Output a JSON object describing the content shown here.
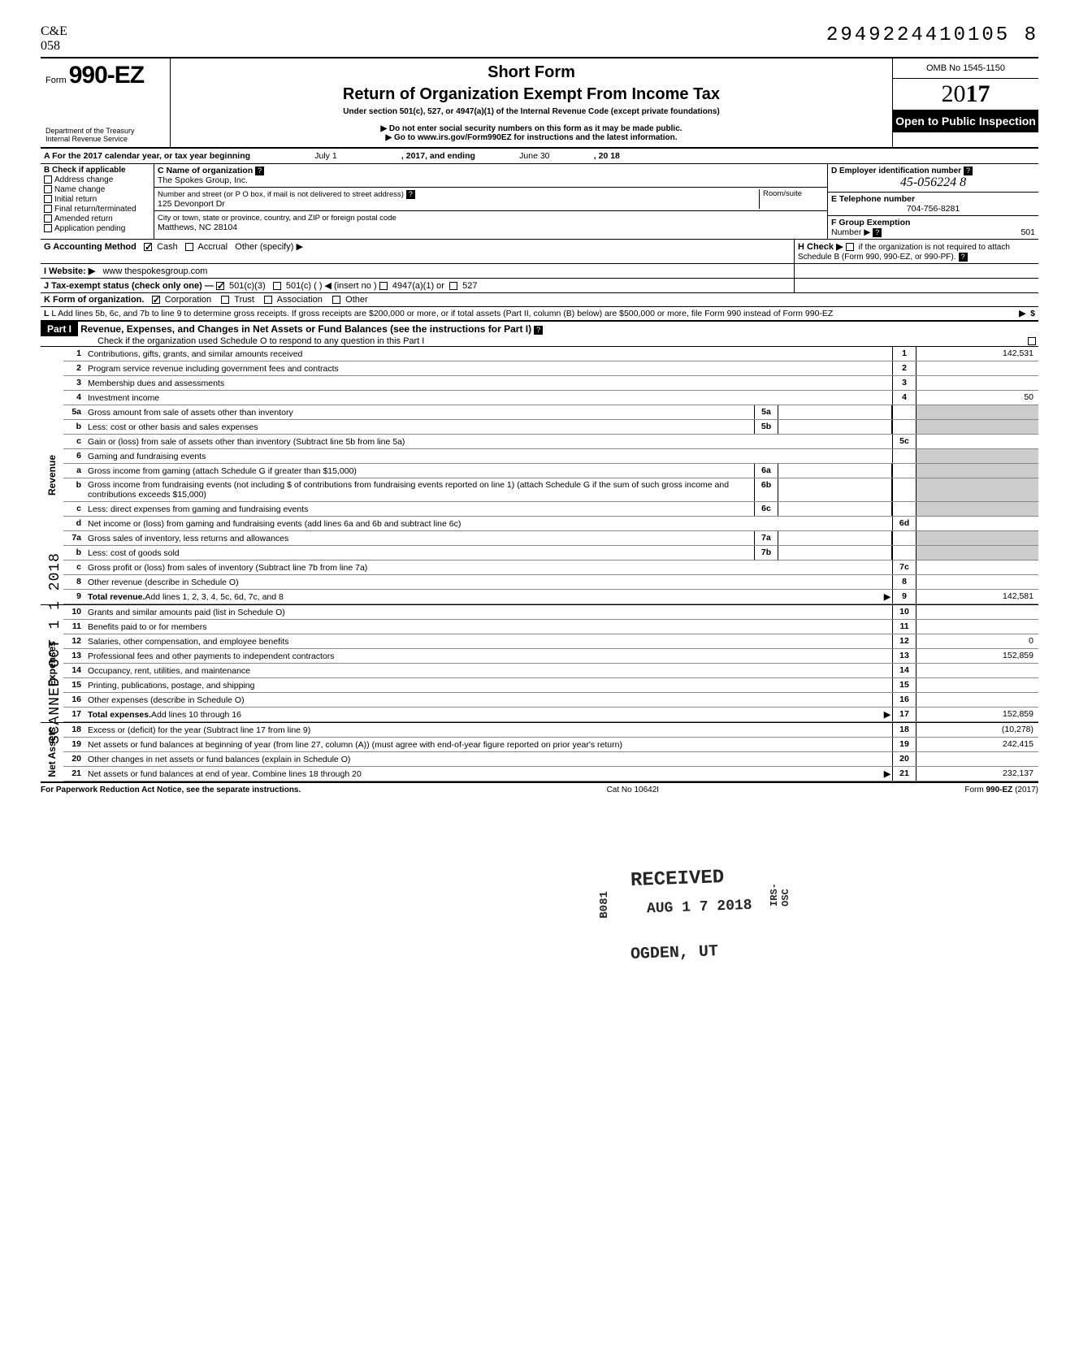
{
  "corner_mark": "C&E\n058",
  "doc_number": "2949224410105  8",
  "header": {
    "form_label": "Form",
    "form_number": "990-EZ",
    "short_form": "Short Form",
    "title": "Return of Organization Exempt From Income Tax",
    "subtitle": "Under section 501(c), 527, or 4947(a)(1) of the Internal Revenue Code (except private foundations)",
    "warn1": "▶ Do not enter social security numbers on this form as it may be made public.",
    "warn2": "▶ Go to www.irs.gov/Form990EZ for instructions and the latest information.",
    "dept1": "Department of the Treasury",
    "dept2": "Internal Revenue Service",
    "omb": "OMB No 1545-1150",
    "year_prefix": "20",
    "year_bold": "17",
    "open": "Open to Public Inspection"
  },
  "line_a": {
    "label": "A For the 2017 calendar year, or tax year beginning",
    "begin": "July 1",
    "mid": ", 2017, and ending",
    "end_month": "June 30",
    "end_year": ", 20   18"
  },
  "col_b": {
    "header": "B Check if applicable",
    "items": [
      "Address change",
      "Name change",
      "Initial return",
      "Final return/terminated",
      "Amended return",
      "Application pending"
    ]
  },
  "col_c": {
    "name_label": "C Name of organization",
    "name": "The Spokes Group, Inc.",
    "addr_label": "Number and street (or P O  box, if mail is not delivered to street address)",
    "room_label": "Room/suite",
    "addr": "125 Devonport Dr",
    "city_label": "City or town, state or province, country, and ZIP or foreign postal code",
    "city": "Matthews, NC  28104"
  },
  "col_d": {
    "ein_label": "D Employer identification number",
    "ein": "45-056224 8",
    "phone_label": "E  Telephone number",
    "phone": "704-756-8281",
    "group_label": "F Group Exemption",
    "group_num_label": "Number  ▶",
    "group_num": "501"
  },
  "line_g": {
    "label": "G  Accounting Method",
    "cash": "Cash",
    "accrual": "Accrual",
    "other": "Other (specify) ▶"
  },
  "line_h": {
    "label": "H Check ▶",
    "text": "if the organization is not required to attach Schedule B (Form 990, 990-EZ, or 990-PF)."
  },
  "line_i": {
    "label": "I  Website: ▶",
    "value": "www thespokesgroup.com"
  },
  "line_j": {
    "label": "J Tax-exempt status (check only one) —",
    "opt1": "501(c)(3)",
    "opt2": "501(c) (",
    "insert": ") ◀ (insert no )",
    "opt3": "4947(a)(1) or",
    "opt4": "527"
  },
  "line_k": {
    "label": "K Form of organization.",
    "corp": "Corporation",
    "trust": "Trust",
    "assoc": "Association",
    "other": "Other"
  },
  "line_l": "L Add lines 5b, 6c, and 7b to line 9 to determine gross receipts. If gross receipts are $200,000 or more, or if total assets (Part II, column (B) below) are $500,000 or more, file Form 990 instead of Form 990-EZ",
  "part1": {
    "label": "Part I",
    "title": "Revenue, Expenses, and Changes in Net Assets or Fund Balances (see the instructions for Part I)",
    "check": "Check if the organization used Schedule O to respond to any question in this Part I"
  },
  "revenue_lines": [
    {
      "n": "1",
      "d": "Contributions, gifts, grants, and similar amounts received",
      "box": "1",
      "v": "142,531"
    },
    {
      "n": "2",
      "d": "Program service revenue including government fees and contracts",
      "box": "2",
      "v": ""
    },
    {
      "n": "3",
      "d": "Membership dues and assessments",
      "box": "3",
      "v": ""
    },
    {
      "n": "4",
      "d": "Investment income",
      "box": "4",
      "v": "50"
    },
    {
      "n": "5a",
      "d": "Gross amount from sale of assets other than inventory",
      "mini": "5a"
    },
    {
      "n": "b",
      "d": "Less: cost or other basis and sales expenses",
      "mini": "5b"
    },
    {
      "n": "c",
      "d": "Gain or (loss) from sale of assets other than inventory (Subtract line 5b from line 5a)",
      "box": "5c",
      "v": ""
    },
    {
      "n": "6",
      "d": "Gaming and fundraising events"
    },
    {
      "n": "a",
      "d": "Gross income from gaming (attach Schedule G if greater than $15,000)",
      "mini": "6a"
    },
    {
      "n": "b",
      "d": "Gross income from fundraising events (not including  $                      of contributions from fundraising events reported on line 1) (attach Schedule G if the sum of such gross income and contributions exceeds $15,000)",
      "mini": "6b"
    },
    {
      "n": "c",
      "d": "Less: direct expenses from gaming and fundraising events",
      "mini": "6c"
    },
    {
      "n": "d",
      "d": "Net income or (loss) from gaming and fundraising events (add lines 6a and 6b and subtract line 6c)",
      "box": "6d",
      "v": ""
    },
    {
      "n": "7a",
      "d": "Gross sales of inventory, less returns and allowances",
      "mini": "7a"
    },
    {
      "n": "b",
      "d": "Less: cost of goods sold",
      "mini": "7b"
    },
    {
      "n": "c",
      "d": "Gross profit or (loss) from sales of inventory (Subtract line 7b from line 7a)",
      "box": "7c",
      "v": ""
    },
    {
      "n": "8",
      "d": "Other revenue (describe in Schedule O)",
      "box": "8",
      "v": ""
    },
    {
      "n": "9",
      "d": "Total revenue. Add lines 1, 2, 3, 4, 5c, 6d, 7c, and 8",
      "box": "9",
      "v": "142,581",
      "bold": true,
      "arrow": true
    }
  ],
  "expense_lines": [
    {
      "n": "10",
      "d": "Grants and similar amounts paid (list in Schedule O)",
      "box": "10",
      "v": ""
    },
    {
      "n": "11",
      "d": "Benefits paid to or for members",
      "box": "11",
      "v": ""
    },
    {
      "n": "12",
      "d": "Salaries, other compensation, and employee benefits",
      "box": "12",
      "v": "0"
    },
    {
      "n": "13",
      "d": "Professional fees and other payments to independent contractors",
      "box": "13",
      "v": "152,859"
    },
    {
      "n": "14",
      "d": "Occupancy, rent, utilities, and maintenance",
      "box": "14",
      "v": ""
    },
    {
      "n": "15",
      "d": "Printing, publications, postage, and shipping",
      "box": "15",
      "v": ""
    },
    {
      "n": "16",
      "d": "Other expenses (describe in Schedule O)",
      "box": "16",
      "v": ""
    },
    {
      "n": "17",
      "d": "Total expenses. Add lines 10 through 16",
      "box": "17",
      "v": "152,859",
      "bold": true,
      "arrow": true
    }
  ],
  "netassets_lines": [
    {
      "n": "18",
      "d": "Excess or (deficit) for the year (Subtract line 17 from line 9)",
      "box": "18",
      "v": "(10,278)"
    },
    {
      "n": "19",
      "d": "Net assets or fund balances at beginning of year (from line 27, column (A)) (must agree with end-of-year figure reported on prior year's return)",
      "box": "19",
      "v": "242,415"
    },
    {
      "n": "20",
      "d": "Other changes in net assets or fund balances (explain in Schedule O)",
      "box": "20",
      "v": ""
    },
    {
      "n": "21",
      "d": "Net assets or fund balances at end of year. Combine lines 18 through 20",
      "box": "21",
      "v": "232,137",
      "arrow": true
    }
  ],
  "side_labels": {
    "revenue": "Revenue",
    "expenses": "Expenses",
    "net": "Net Assets"
  },
  "footer": {
    "left": "For Paperwork Reduction Act Notice, see the separate instructions.",
    "mid": "Cat No 10642I",
    "right": "Form 990-EZ (2017)"
  },
  "stamps": {
    "scanned": "SCANNED OCT 1 1 2018",
    "received": "RECEIVED",
    "date": "AUG 1 7 2018",
    "ogden": "OGDEN, UT",
    "irs": "IRS-OSC",
    "b081": "B081"
  },
  "colors": {
    "text": "#000000",
    "bg": "#ffffff",
    "shade": "#cccccc",
    "border": "#000000"
  }
}
